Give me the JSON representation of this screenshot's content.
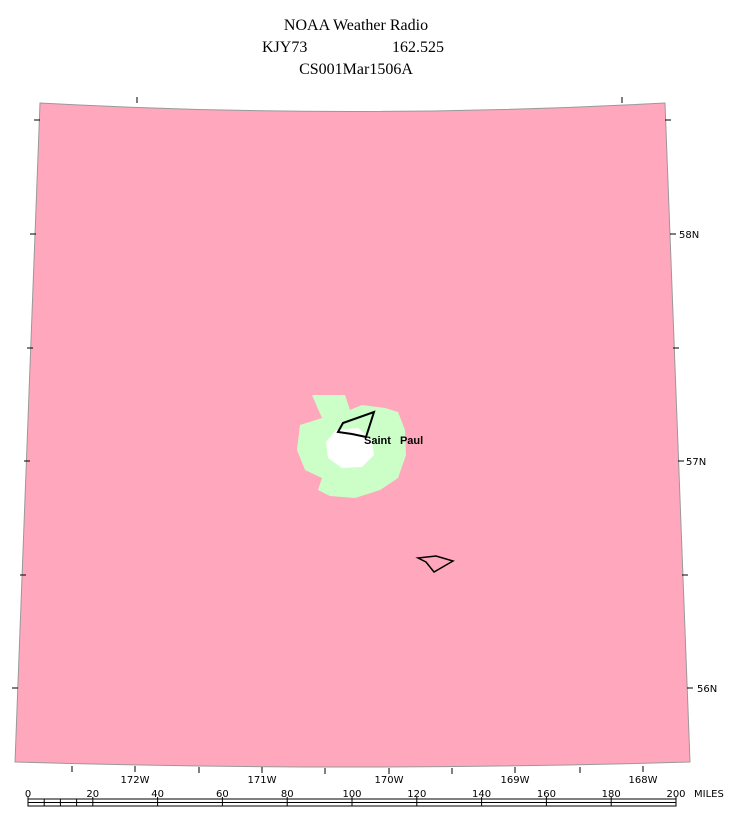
{
  "header": {
    "title": "NOAA Weather Radio",
    "station": "KJY73",
    "frequency": "162.525",
    "product": "CS001Mar1506A"
  },
  "map": {
    "places": [
      {
        "label": "Saint Paul"
      }
    ],
    "latitude_labels": [
      "58N",
      "57N",
      "56N"
    ],
    "longitude_labels": [
      "172W",
      "171W",
      "170W",
      "169W",
      "168W"
    ]
  },
  "scale": {
    "ticks": [
      0,
      20,
      40,
      60,
      80,
      100,
      120,
      140,
      160,
      180,
      200
    ],
    "unit": "MILES"
  }
}
